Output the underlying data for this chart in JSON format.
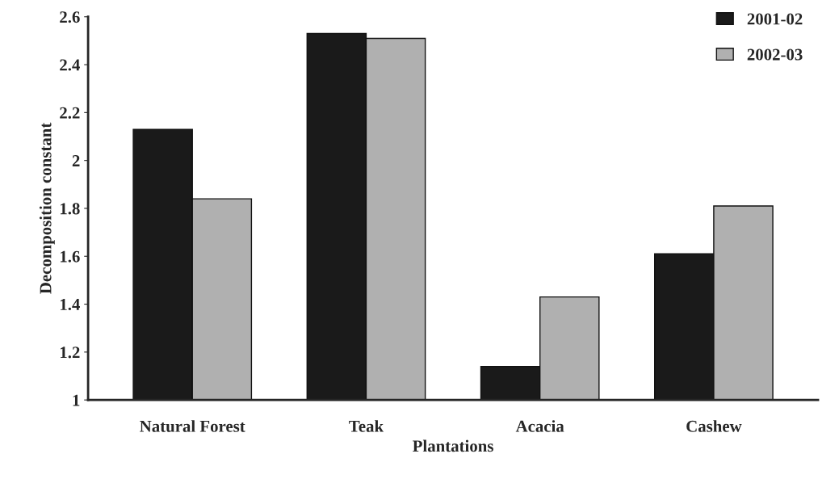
{
  "chart_data": {
    "type": "bar",
    "categories": [
      "Natural Forest",
      "Teak",
      "Acacia",
      "Cashew"
    ],
    "series": [
      {
        "name": "2001-02",
        "color": "#1a1a1a",
        "values": [
          2.13,
          2.53,
          1.14,
          1.61
        ]
      },
      {
        "name": "2002-03",
        "color": "#b0b0b0",
        "values": [
          1.84,
          2.51,
          1.43,
          1.81
        ]
      }
    ],
    "xlabel": "Plantations",
    "ylabel": "Decomposition constant",
    "ylim": [
      1,
      2.6
    ],
    "yticks": [
      1,
      {
        "value": 1.2,
        "label": "1.2"
      },
      {
        "value": 1.4,
        "label": "1.4"
      },
      {
        "value": 1.6,
        "label": "1.6"
      },
      {
        "value": 1.8,
        "label": "1.8"
      },
      2,
      {
        "value": 2.2,
        "label": "2.2"
      },
      {
        "value": 2.4,
        "label": "2.4"
      },
      {
        "value": 2.6,
        "label": "2.6"
      }
    ],
    "legend": "top right",
    "grid": false
  }
}
